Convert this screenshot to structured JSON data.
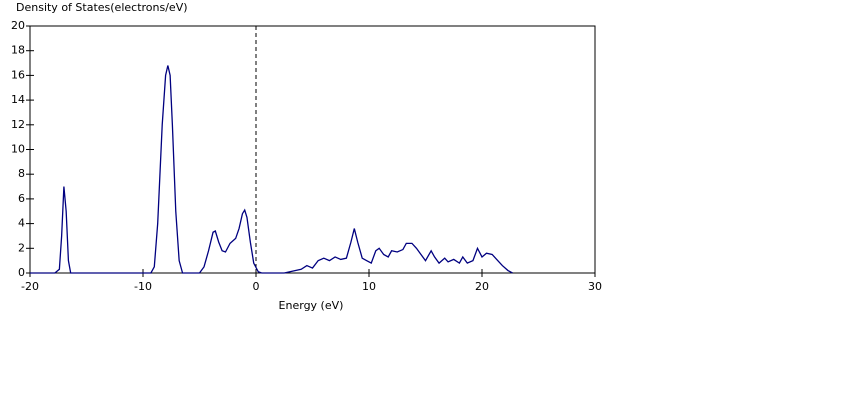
{
  "chart_data": {
    "type": "line",
    "ylabel": "Density of States(electrons/eV)",
    "xlabel": "Energy (eV)",
    "x": [
      -20,
      -17.8,
      -17.4,
      -17.2,
      -17.0,
      -16.8,
      -16.6,
      -16.4,
      -9.3,
      -9.0,
      -8.7,
      -8.3,
      -8.0,
      -7.8,
      -7.6,
      -7.4,
      -7.1,
      -6.8,
      -6.5,
      -5.0,
      -4.6,
      -4.2,
      -3.8,
      -3.6,
      -3.3,
      -3.0,
      -2.7,
      -2.3,
      -1.8,
      -1.5,
      -1.2,
      -1.0,
      -0.8,
      -0.5,
      -0.2,
      0.2,
      0.5,
      2.5,
      3.5,
      4.0,
      4.5,
      5.0,
      5.5,
      6.0,
      6.5,
      7.0,
      7.5,
      8.0,
      8.4,
      8.7,
      9.0,
      9.4,
      9.8,
      10.2,
      10.6,
      10.9,
      11.3,
      11.7,
      12.0,
      12.5,
      13.0,
      13.3,
      13.8,
      14.2,
      14.6,
      15.0,
      15.5,
      15.8,
      16.2,
      16.7,
      17.0,
      17.5,
      18.0,
      18.3,
      18.7,
      19.2,
      19.6,
      20.0,
      20.4,
      20.9,
      21.3,
      21.8,
      22.3,
      22.7
    ],
    "series": [
      {
        "color": "#000080",
        "values": [
          0,
          0,
          0.3,
          3,
          7.0,
          5,
          1,
          0,
          0,
          0.5,
          4,
          12,
          16,
          16.8,
          16,
          12,
          5,
          1,
          0,
          0,
          0.5,
          1.8,
          3.3,
          3.4,
          2.5,
          1.8,
          1.7,
          2.4,
          2.8,
          3.6,
          4.8,
          5.1,
          4.5,
          2.5,
          0.8,
          0.1,
          0,
          0,
          0.2,
          0.3,
          0.6,
          0.4,
          1.0,
          1.2,
          1.0,
          1.3,
          1.1,
          1.2,
          2.5,
          3.6,
          2.5,
          1.2,
          1.0,
          0.8,
          1.8,
          2.0,
          1.5,
          1.3,
          1.8,
          1.7,
          1.9,
          2.4,
          2.4,
          2.0,
          1.5,
          1.0,
          1.8,
          1.3,
          0.8,
          1.2,
          0.9,
          1.1,
          0.8,
          1.3,
          0.8,
          1.0,
          2.0,
          1.3,
          1.6,
          1.5,
          1.1,
          0.6,
          0.2,
          0
        ]
      }
    ],
    "xlim": [
      -20,
      30
    ],
    "xticks": [
      -20,
      -10,
      0,
      10,
      20,
      30
    ],
    "ylim": [
      0,
      20
    ],
    "yticks": [
      0,
      2,
      4,
      6,
      8,
      10,
      12,
      14,
      16,
      18,
      20
    ],
    "vline_x": 0
  }
}
